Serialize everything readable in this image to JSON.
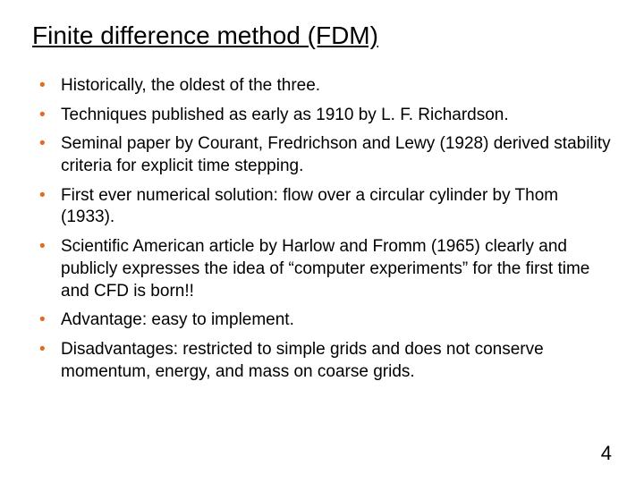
{
  "slide": {
    "title": "Finite difference method (FDM)",
    "bullet_color": "#e06c1f",
    "text_color": "#000000",
    "background_color": "#ffffff",
    "title_fontsize": 28,
    "body_fontsize": 19,
    "bullets": [
      "Historically, the oldest of the three.",
      "Techniques published as early as 1910 by L. F. Richardson.",
      "Seminal paper by Courant, Fredrichson and Lewy (1928) derived stability criteria for explicit time stepping.",
      "First ever numerical solution: flow over a circular cylinder by Thom (1933).",
      "Scientific American article by Harlow and Fromm (1965) clearly and publicly expresses the idea of “computer experiments” for the first time and CFD is born!!",
      "Advantage: easy to implement.",
      "Disadvantages: restricted to simple grids and does not conserve momentum, energy, and mass on coarse grids."
    ],
    "page_number": "4"
  }
}
